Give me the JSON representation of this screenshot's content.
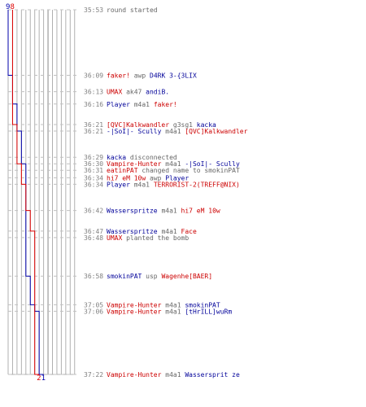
{
  "chart_data": {
    "type": "line",
    "title": "",
    "xlabel": "",
    "ylabel": "",
    "teams": [
      {
        "name": "blue",
        "color": "#0000aa",
        "start_count": 9,
        "end_label": "1"
      },
      {
        "name": "red",
        "color": "#dd0000",
        "start_count": 8,
        "end_label": "2"
      }
    ],
    "colors": {
      "red": "#cc0000",
      "blue": "#000099",
      "grey": "#666666",
      "time": "#808080",
      "grid": "#b0b0b0",
      "dash": "#c0c0c0"
    },
    "events": [
      {
        "time": "35:53",
        "blue": 9,
        "red": 8,
        "parts": [
          {
            "t": "round started",
            "c": "grey"
          }
        ]
      },
      {
        "time": "36:09",
        "blue": 8,
        "red": 8,
        "parts": [
          {
            "t": "faker!",
            "c": "red"
          },
          {
            "t": " awp ",
            "c": "grey"
          },
          {
            "t": "D4RK 3-{3LIX",
            "c": "blue"
          }
        ]
      },
      {
        "time": "36:13",
        "blue": 8,
        "red": 8,
        "parts": [
          {
            "t": "UMAX",
            "c": "red"
          },
          {
            "t": " ak47 ",
            "c": "grey"
          },
          {
            "t": "andiB.",
            "c": "blue"
          }
        ]
      },
      {
        "time": "36:16",
        "blue": 7,
        "red": 8,
        "parts": [
          {
            "t": "Player",
            "c": "blue"
          },
          {
            "t": " m4a1 ",
            "c": "grey"
          },
          {
            "t": "faker!",
            "c": "red"
          }
        ]
      },
      {
        "time": "36:21",
        "blue": 7,
        "red": 7,
        "parts": [
          {
            "t": "[QVC]Kalkwandler",
            "c": "red"
          },
          {
            "t": " g3sg1 ",
            "c": "grey"
          },
          {
            "t": "kacka",
            "c": "blue"
          }
        ]
      },
      {
        "time": "36:21",
        "blue": 6,
        "red": 7,
        "parts": [
          {
            "t": "-|SoI|- Scully",
            "c": "blue"
          },
          {
            "t": " m4a1 ",
            "c": "grey"
          },
          {
            "t": "[QVC]Kalkwandler",
            "c": "red"
          }
        ]
      },
      {
        "time": "36:29",
        "blue": 6,
        "red": 7,
        "parts": [
          {
            "t": "kacka",
            "c": "blue"
          },
          {
            "t": " disconnected",
            "c": "grey"
          }
        ]
      },
      {
        "time": "36:30",
        "blue": 5,
        "red": 6,
        "parts": [
          {
            "t": "Vampire-Hunter",
            "c": "red"
          },
          {
            "t": " m4a1 ",
            "c": "grey"
          },
          {
            "t": "-|SoI|- Scully",
            "c": "blue"
          }
        ]
      },
      {
        "time": "36:31",
        "blue": 5,
        "red": 6,
        "parts": [
          {
            "t": "eatinPAT",
            "c": "red"
          },
          {
            "t": " changed name to smokinPAT",
            "c": "grey"
          }
        ]
      },
      {
        "time": "36:34",
        "blue": 5,
        "red": 6,
        "parts": [
          {
            "t": "hi7 eM 10w",
            "c": "red"
          },
          {
            "t": " awp ",
            "c": "grey"
          },
          {
            "t": "Player",
            "c": "blue"
          }
        ]
      },
      {
        "time": "36:34",
        "blue": 5,
        "red": 5,
        "parts": [
          {
            "t": "Player",
            "c": "blue"
          },
          {
            "t": " m4a1 ",
            "c": "grey"
          },
          {
            "t": "TERRORIST-2(TREFF@NIX)",
            "c": "red"
          }
        ]
      },
      {
        "time": "36:42",
        "blue": 5,
        "red": 4,
        "parts": [
          {
            "t": "Wasserspritze",
            "c": "blue"
          },
          {
            "t": " m4a1 ",
            "c": "grey"
          },
          {
            "t": "hi7 eM 10w",
            "c": "red"
          }
        ]
      },
      {
        "time": "36:47",
        "blue": 5,
        "red": 3,
        "parts": [
          {
            "t": "Wasserspritze",
            "c": "blue"
          },
          {
            "t": " m4a1 ",
            "c": "grey"
          },
          {
            "t": "Face",
            "c": "red"
          }
        ]
      },
      {
        "time": "36:48",
        "blue": 5,
        "red": 3,
        "parts": [
          {
            "t": "UMAX",
            "c": "red"
          },
          {
            "t": " planted the bomb",
            "c": "grey"
          }
        ]
      },
      {
        "time": "36:58",
        "blue": 4,
        "red": 3,
        "parts": [
          {
            "t": "smokinPAT",
            "c": "blue"
          },
          {
            "t": " usp ",
            "c": "grey"
          },
          {
            "t": "Wagenhe[BAER]",
            "c": "red"
          }
        ]
      },
      {
        "time": "37:05",
        "blue": 3,
        "red": 3,
        "parts": [
          {
            "t": "Vampire-Hunter",
            "c": "red"
          },
          {
            "t": " m4a1 ",
            "c": "grey"
          },
          {
            "t": "smokinPAT",
            "c": "blue"
          }
        ]
      },
      {
        "time": "37:06",
        "blue": 2,
        "red": 3,
        "parts": [
          {
            "t": "Vampire-Hunter",
            "c": "red"
          },
          {
            "t": " m4a1 ",
            "c": "grey"
          },
          {
            "t": "[tHrILL]wuRm",
            "c": "blue"
          }
        ]
      },
      {
        "time": "37:22",
        "blue": 1,
        "red": 2,
        "parts": [
          {
            "t": "Vampire-Hunter",
            "c": "red"
          },
          {
            "t": " m4a1 ",
            "c": "grey"
          },
          {
            "t": "Wassersprit ze",
            "c": "blue"
          }
        ]
      }
    ]
  }
}
